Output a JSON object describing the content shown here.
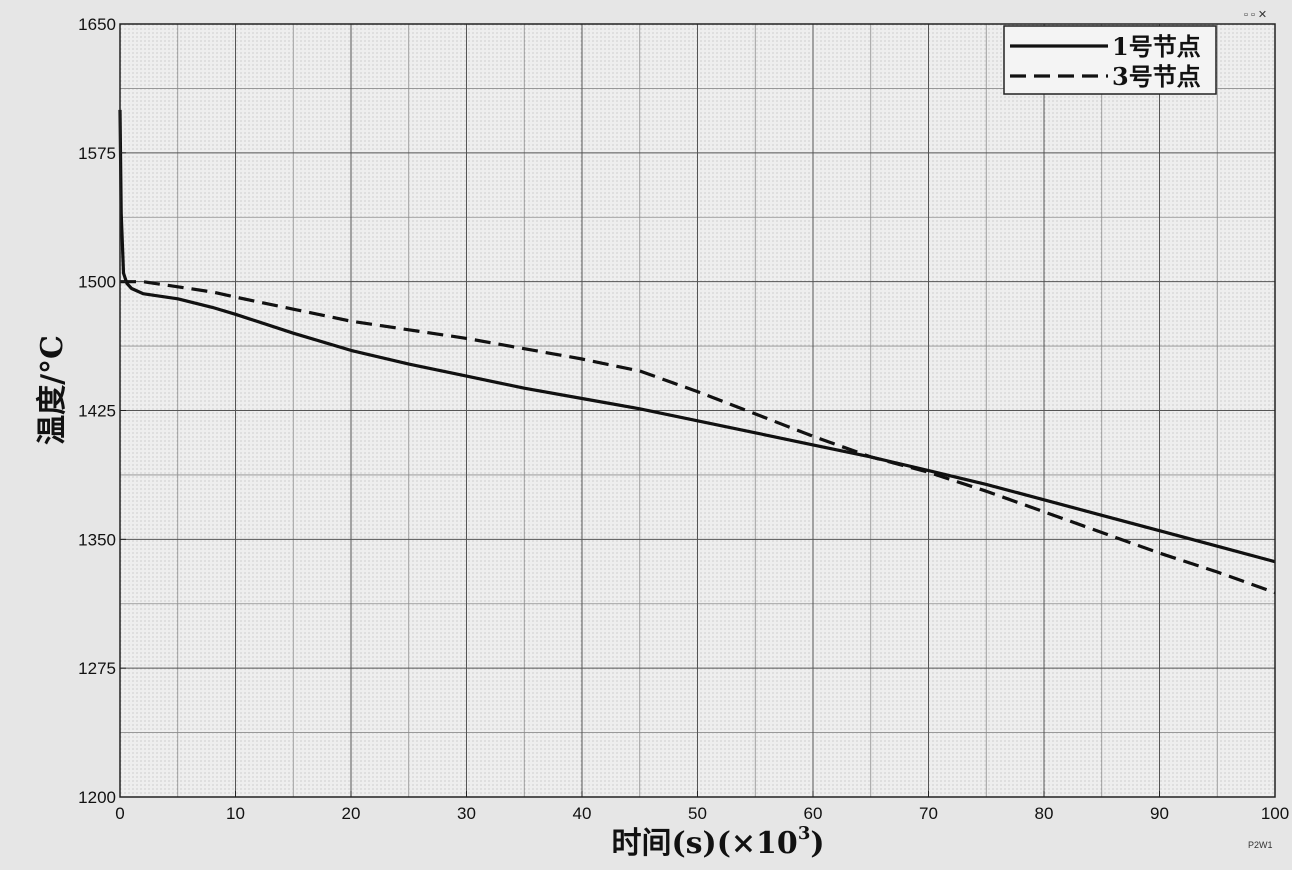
{
  "chart_data": {
    "type": "line",
    "title": "",
    "xlabel": "时间(s)(×10",
    "xlabel_sup": "3",
    "xlabel_close": ")",
    "ylabel": "温度/°C",
    "xlim": [
      0,
      100
    ],
    "ylim": [
      1200,
      1650
    ],
    "xticks": [
      0,
      10,
      20,
      30,
      40,
      50,
      60,
      70,
      80,
      90,
      100
    ],
    "yticks": [
      1200,
      1275,
      1350,
      1425,
      1500,
      1575,
      1650
    ],
    "xtick_labels": [
      "0",
      "10",
      "20",
      "30",
      "40",
      "50",
      "60",
      "70",
      "80",
      "90",
      "100"
    ],
    "ytick_labels": [
      "1200",
      "1275",
      "1350",
      "1425",
      "1500",
      "1575",
      "1650"
    ],
    "minor_grid_x": [
      5,
      15,
      25,
      35,
      45,
      55,
      65,
      75,
      85,
      95
    ],
    "minor_grid_y": [
      1237.5,
      1312.5,
      1387.5,
      1462.5,
      1537.5,
      1612.5
    ],
    "grid": true,
    "legend_position": "top-right",
    "series": [
      {
        "name": "1号节点",
        "style": "solid",
        "color": "#111111",
        "x": [
          0,
          0.1,
          0.3,
          0.6,
          1,
          2,
          3,
          5,
          8,
          10,
          15,
          20,
          25,
          30,
          35,
          40,
          45,
          50,
          55,
          60,
          65,
          70,
          75,
          80,
          85,
          90,
          95,
          100
        ],
        "y": [
          1600,
          1540,
          1505,
          1499,
          1496,
          1493,
          1492,
          1490,
          1485,
          1481,
          1470,
          1460,
          1452,
          1445,
          1438,
          1432,
          1426,
          1419,
          1412,
          1405,
          1398,
          1390,
          1382,
          1373,
          1364,
          1355,
          1346,
          1337
        ]
      },
      {
        "name": "3号节点",
        "style": "dashed",
        "color": "#111111",
        "x": [
          0,
          2,
          5,
          8,
          10,
          15,
          20,
          25,
          30,
          35,
          40,
          45,
          50,
          55,
          60,
          65,
          70,
          75,
          80,
          85,
          90,
          95,
          100
        ],
        "y": [
          1500,
          1500,
          1497,
          1494,
          1491,
          1484,
          1477,
          1472,
          1467,
          1461,
          1455,
          1448,
          1436,
          1423,
          1410,
          1398,
          1389,
          1378,
          1366,
          1354,
          1342,
          1331,
          1319
        ]
      }
    ]
  },
  "corner_marks": {
    "top_right": "▫ ▫ ✕",
    "bottom_right": "P2W1"
  }
}
